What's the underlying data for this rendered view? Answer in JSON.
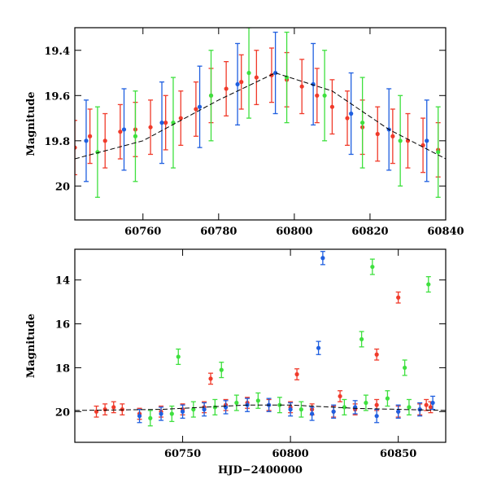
{
  "colors": {
    "blue": "#1f5fe0",
    "green": "#3ee03e",
    "red": "#f03a2a",
    "model": "#000000"
  },
  "chart_data": [
    {
      "type": "scatter",
      "panel": "top",
      "title": "",
      "xlabel": "",
      "ylabel": "Magnitude",
      "xlim": [
        60742,
        60840
      ],
      "ylim": [
        19.3,
        20.15
      ],
      "y_inverted": true,
      "x_ticks": [
        60760,
        60780,
        60800,
        60820,
        60840
      ],
      "y_ticks": [
        19.4,
        19.6,
        19.8,
        20
      ],
      "grid": false,
      "legend": "none",
      "series": [
        {
          "color": "red",
          "x": [
            60742,
            60746,
            60750,
            60754,
            60758,
            60762,
            60766,
            60770,
            60774,
            60778,
            60782,
            60786,
            60790,
            60794,
            60798,
            60802,
            60806,
            60810,
            60814,
            60818,
            60822,
            60826,
            60830,
            60834,
            60838
          ],
          "y": [
            19.83,
            19.78,
            19.8,
            19.76,
            19.75,
            19.74,
            19.72,
            19.7,
            19.66,
            19.6,
            19.57,
            19.54,
            19.52,
            19.51,
            19.53,
            19.56,
            19.6,
            19.65,
            19.7,
            19.74,
            19.77,
            19.78,
            19.8,
            19.82,
            19.84
          ],
          "yerr": 0.12
        },
        {
          "color": "blue",
          "x": [
            60745,
            60755,
            60765,
            60775,
            60785,
            60795,
            60805,
            60815,
            60825,
            60835
          ],
          "y": [
            19.8,
            19.75,
            19.72,
            19.65,
            19.55,
            19.5,
            19.55,
            19.68,
            19.75,
            19.8
          ],
          "yerr": 0.18
        },
        {
          "color": "green",
          "x": [
            60748,
            60758,
            60768,
            60778,
            60788,
            60798,
            60808,
            60818,
            60828,
            60838
          ],
          "y": [
            19.85,
            19.78,
            19.72,
            19.6,
            19.5,
            19.52,
            19.6,
            19.72,
            19.8,
            19.85
          ],
          "yerr": 0.2
        }
      ],
      "model_curve": {
        "x": [
          60742,
          60760,
          60780,
          60795,
          60810,
          60825,
          60840
        ],
        "y": [
          19.88,
          19.8,
          19.62,
          19.5,
          19.58,
          19.75,
          19.88
        ]
      }
    },
    {
      "type": "scatter",
      "panel": "bottom",
      "title": "",
      "xlabel": "HJD−2400000",
      "ylabel": "Magnitude",
      "xlim": [
        60700,
        60872
      ],
      "ylim": [
        12.6,
        21.4
      ],
      "y_inverted": true,
      "x_ticks": [
        60750,
        60800,
        60850
      ],
      "y_ticks": [
        14,
        16,
        18,
        20
      ],
      "grid": false,
      "legend": "none",
      "series": [
        {
          "color": "red",
          "x": [
            60710,
            60714,
            60718,
            60722,
            60730,
            60740,
            60750,
            60760,
            60770,
            60780,
            60790,
            60800,
            60810,
            60820,
            60830,
            60840,
            60850,
            60860,
            60865,
            60763,
            60803,
            60840,
            60850,
            60863,
            60823
          ],
          "y": [
            20.0,
            19.9,
            19.8,
            19.9,
            20.1,
            20.0,
            19.9,
            19.8,
            19.7,
            19.6,
            19.7,
            19.8,
            19.9,
            20.0,
            19.9,
            19.7,
            20.0,
            19.9,
            19.8,
            18.5,
            18.3,
            17.4,
            14.8,
            19.7,
            19.3
          ],
          "yerr": 0.25
        },
        {
          "color": "blue",
          "x": [
            60730,
            60740,
            60750,
            60760,
            60770,
            60780,
            60790,
            60800,
            60810,
            60820,
            60830,
            60840,
            60850,
            60860,
            60815,
            60813,
            60866
          ],
          "y": [
            20.2,
            20.1,
            20.0,
            19.9,
            19.8,
            19.7,
            19.7,
            19.9,
            20.1,
            20.0,
            19.8,
            20.2,
            20.0,
            19.9,
            13.0,
            17.1,
            19.6
          ],
          "yerr": 0.3
        },
        {
          "color": "green",
          "x": [
            60735,
            60745,
            60755,
            60765,
            60775,
            60785,
            60795,
            60805,
            60825,
            60835,
            60845,
            60855,
            60748,
            60768,
            60833,
            60838,
            60853,
            60864
          ],
          "y": [
            20.3,
            20.1,
            19.9,
            19.8,
            19.6,
            19.5,
            19.7,
            19.9,
            19.8,
            19.6,
            19.4,
            19.8,
            17.5,
            18.1,
            16.7,
            13.4,
            18.0,
            14.2
          ],
          "yerr": 0.35
        }
      ],
      "model_curve": {
        "x": [
          60700,
          60740,
          60780,
          60800,
          60830,
          60872
        ],
        "y": [
          19.95,
          19.9,
          19.7,
          19.7,
          19.85,
          19.95
        ]
      }
    }
  ]
}
